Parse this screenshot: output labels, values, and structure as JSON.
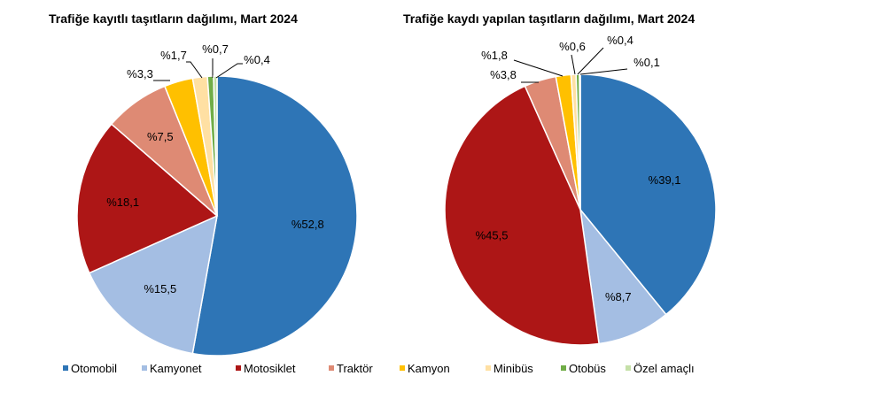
{
  "chart_data": [
    {
      "type": "pie",
      "title": "Trafiğe kayıtlı taşıtların dağılımı, Mart 2024",
      "categories": [
        "Otomobil",
        "Kamyonet",
        "Motosiklet",
        "Traktör",
        "Kamyon",
        "Minibüs",
        "Otobüs",
        "Özel amaçlı"
      ],
      "values": [
        52.8,
        15.5,
        18.1,
        7.5,
        3.3,
        1.7,
        0.7,
        0.4
      ],
      "labels": [
        "%52,8",
        "%15,5",
        "%18,1",
        "%7,5",
        "%3,3",
        "%1,7",
        "%0,7",
        "%0,4"
      ],
      "legend_position": "bottom"
    },
    {
      "type": "pie",
      "title": "Trafiğe kaydı yapılan taşıtların dağılımı, Mart 2024",
      "categories": [
        "Otomobil",
        "Kamyonet",
        "Motosiklet",
        "Traktör",
        "Kamyon",
        "Minibüs",
        "Otobüs",
        "Özel amaçlı"
      ],
      "values": [
        39.1,
        8.7,
        45.5,
        3.8,
        1.8,
        0.6,
        0.4,
        0.1
      ],
      "labels": [
        "%39,1",
        "%8,7",
        "%45,5",
        "%3,8",
        "%1,8",
        "%0,6",
        "%0,4",
        "%0,1"
      ],
      "legend_position": "bottom"
    }
  ],
  "legend": [
    {
      "label": "Otomobil",
      "color": "#2E75B6"
    },
    {
      "label": "Kamyonet",
      "color": "#A4BEE3"
    },
    {
      "label": "Motosiklet",
      "color": "#AD1616"
    },
    {
      "label": "Traktör",
      "color": "#DE8A74"
    },
    {
      "label": "Kamyon",
      "color": "#FFC000"
    },
    {
      "label": "Minibüs",
      "color": "#FFE0A3"
    },
    {
      "label": "Otobüs",
      "color": "#70AD47"
    },
    {
      "label": "Özel amaçlı",
      "color": "#C5E0A8"
    }
  ]
}
